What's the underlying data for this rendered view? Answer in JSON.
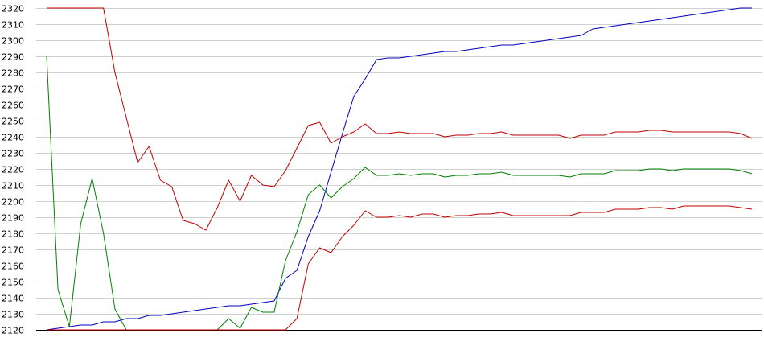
{
  "chart_data": {
    "type": "line",
    "title": "",
    "xlabel": "",
    "ylabel": "",
    "ylim": [
      2120,
      2320
    ],
    "yticks": [
      2120,
      2130,
      2140,
      2150,
      2160,
      2170,
      2180,
      2190,
      2200,
      2210,
      2220,
      2230,
      2240,
      2250,
      2260,
      2270,
      2280,
      2290,
      2300,
      2310,
      2320
    ],
    "ytick_labels": [
      "2120",
      "2130",
      "2140",
      "2150",
      "2160",
      "2170",
      "2180",
      "2190",
      "2200",
      "2210",
      "2220",
      "2230",
      "2240",
      "2250",
      "2260",
      "2270",
      "2280",
      "2290",
      "2300",
      "2310",
      "2320"
    ],
    "grid": true,
    "legend": "none",
    "x": [
      0,
      1,
      2,
      3,
      4,
      5,
      6,
      7,
      8,
      9,
      10,
      11,
      12,
      13,
      14,
      15,
      16,
      17,
      18,
      19,
      20,
      21,
      22,
      23,
      24,
      25,
      26,
      27,
      28,
      29,
      30,
      31,
      32,
      33,
      34,
      35,
      36,
      37,
      38,
      39,
      40,
      41,
      42,
      43,
      44,
      45,
      46,
      47,
      48,
      49,
      50,
      51,
      52,
      53,
      54,
      55,
      56,
      57,
      58,
      59,
      60,
      61,
      62
    ],
    "series": [
      {
        "color": "#0000c0",
        "values": [
          2120,
          2121,
          2122,
          2123,
          2123,
          2125,
          2125,
          2127,
          2127,
          2129,
          2129,
          2130,
          2131,
          2132,
          2133,
          2134,
          2135,
          2135,
          2136,
          2137,
          2138,
          2152,
          2157,
          2178,
          2194,
          2218,
          2242,
          2265,
          2276,
          2288,
          2289,
          2289,
          2290,
          2291,
          2292,
          2293,
          2293,
          2294,
          2295,
          2296,
          2297,
          2297,
          2298,
          2299,
          2300,
          2301,
          2302,
          2303,
          2307,
          2308,
          2309,
          2310,
          2311,
          2312,
          2313,
          2314,
          2315,
          2316,
          2317,
          2318,
          2319,
          2320,
          2320
        ]
      },
      {
        "color": "#c00000",
        "values": [
          2320,
          2320,
          2320,
          2320,
          2320,
          2320,
          2280,
          2252,
          2224,
          2234,
          2213,
          2209,
          2188,
          2186,
          2182,
          2196,
          2213,
          2200,
          2216,
          2210,
          2209,
          2219,
          2233,
          2247,
          2249,
          2236,
          2240,
          2243,
          2248,
          2242,
          2242,
          2243,
          2242,
          2242,
          2242,
          2240,
          2241,
          2241,
          2242,
          2242,
          2243,
          2241,
          2241,
          2241,
          2241,
          2241,
          2239,
          2241,
          2241,
          2241,
          2243,
          2243,
          2243,
          2244,
          2244,
          2243,
          2243,
          2243,
          2243,
          2243,
          2243,
          2242,
          2239
        ]
      },
      {
        "color": "#008000",
        "values": [
          2290,
          2145,
          2122,
          2186,
          2214,
          2180,
          2133,
          2120,
          2120,
          2120,
          2120,
          2120,
          2120,
          2120,
          2120,
          2120,
          2127,
          2121,
          2134,
          2131,
          2131,
          2163,
          2181,
          2204,
          2210,
          2202,
          2209,
          2214,
          2221,
          2216,
          2216,
          2217,
          2216,
          2217,
          2217,
          2215,
          2216,
          2216,
          2217,
          2217,
          2218,
          2216,
          2216,
          2216,
          2216,
          2216,
          2215,
          2217,
          2217,
          2217,
          2219,
          2219,
          2219,
          2220,
          2220,
          2219,
          2220,
          2220,
          2220,
          2220,
          2220,
          2219,
          2217
        ]
      },
      {
        "color": "#c00000",
        "values": [
          2120,
          2120,
          2120,
          2120,
          2120,
          2120,
          2120,
          2120,
          2120,
          2120,
          2120,
          2120,
          2120,
          2120,
          2120,
          2120,
          2120,
          2120,
          2120,
          2120,
          2120,
          2120,
          2127,
          2161,
          2171,
          2168,
          2178,
          2185,
          2194,
          2190,
          2190,
          2191,
          2190,
          2192,
          2192,
          2190,
          2191,
          2191,
          2192,
          2192,
          2193,
          2191,
          2191,
          2191,
          2191,
          2191,
          2191,
          2193,
          2193,
          2193,
          2195,
          2195,
          2195,
          2196,
          2196,
          2195,
          2197,
          2197,
          2197,
          2197,
          2197,
          2196,
          2195
        ]
      }
    ]
  }
}
